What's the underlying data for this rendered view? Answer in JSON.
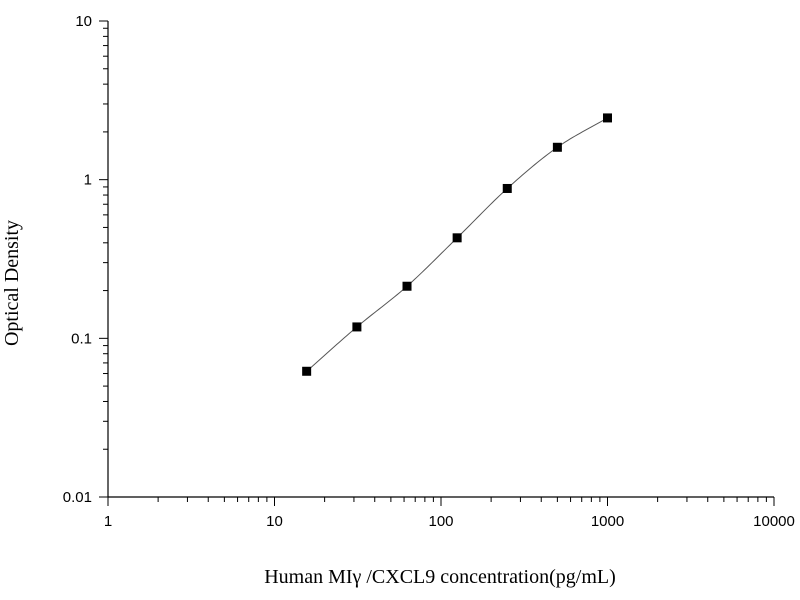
{
  "chart_data": {
    "type": "scatter",
    "xlabel": "Human MIγ  /CXCL9 concentration(pg/mL)",
    "ylabel": "Optical Density",
    "x_scale": "log",
    "y_scale": "log",
    "xlim": [
      1,
      10000
    ],
    "ylim": [
      0.01,
      10
    ],
    "x_ticks": [
      1,
      10,
      100,
      1000,
      10000
    ],
    "x_tick_labels": [
      "1",
      "10",
      "100",
      "1000",
      "10000"
    ],
    "y_ticks": [
      0.01,
      0.1,
      1,
      10
    ],
    "y_tick_labels": [
      "0.01",
      "0.1",
      "1",
      "10"
    ],
    "grid": false,
    "series": [
      {
        "marker": "square",
        "line": "smooth fitted curve",
        "x": [
          15.6,
          31.25,
          62.5,
          125,
          250,
          500,
          1000
        ],
        "y": [
          0.062,
          0.118,
          0.213,
          0.43,
          0.88,
          1.6,
          2.45
        ]
      }
    ],
    "colors": {
      "marker": "#000000",
      "curve": "#555555",
      "axis": "#000000"
    }
  }
}
